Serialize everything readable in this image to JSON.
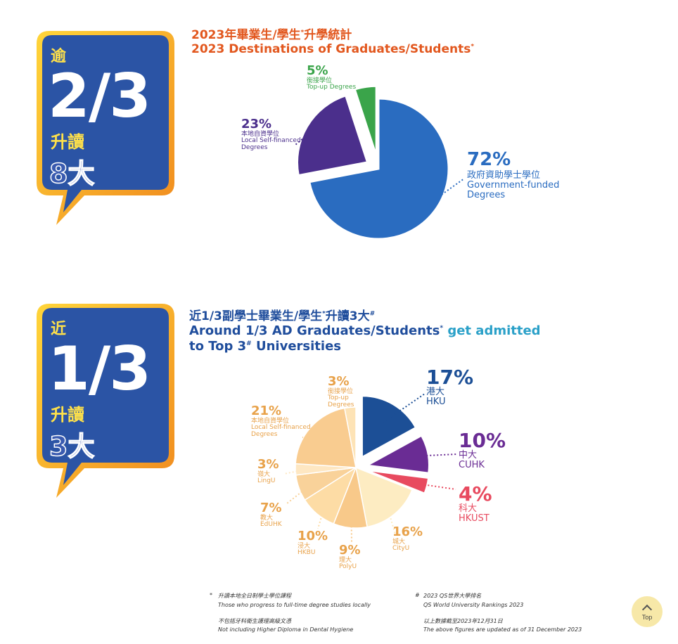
{
  "section1": {
    "bubble": {
      "prefix": "逾",
      "fraction": "2/3",
      "verb": "升讀",
      "outline": "8大"
    },
    "title_zh": "2023年畢業生/學生",
    "title_zh_sup": "*",
    "title_zh_tail": "升學統計",
    "title_en": "2023 Destinations of Graduates/Students",
    "title_en_sup": "*"
  },
  "section2": {
    "bubble": {
      "prefix": "近",
      "fraction": "1/3",
      "verb": "升讀",
      "outline": "3大"
    },
    "title_zh": "近1/3副學士畢業生/學生",
    "title_zh_sup": "*",
    "title_zh_tail": "升讀3大",
    "title_zh_sup2": "#",
    "title_en_1a": "Around 1/3 AD Graduates/Students",
    "title_en_1sup": "*",
    "title_en_1b": " get admitted",
    "title_en_2a": "to Top 3",
    "title_en_2sup": "#",
    "title_en_2b": " Universities"
  },
  "chart_data": [
    {
      "type": "pie",
      "title": "2023 Destinations of Graduates/Students",
      "slices": [
        {
          "pct": "72%",
          "value": 72,
          "zh": "政府資助學士學位",
          "en": "Government-funded Degrees",
          "en1": "Government-funded",
          "en2": "Degrees",
          "color": "#2a6cc0"
        },
        {
          "pct": "23%",
          "value": 23,
          "zh": "本地自資學位",
          "en": "Local Self-financed Degrees",
          "en1": "Local Self-financed",
          "en2": "Degrees",
          "color": "#4b2f8c"
        },
        {
          "pct": "5%",
          "value": 5,
          "zh": "銜接學位",
          "en": "Top-up Degrees",
          "color": "#3aa44a"
        }
      ]
    },
    {
      "type": "pie",
      "title": "Around 1/3 AD Graduates/Students get admitted to Top 3 Universities",
      "slices": [
        {
          "pct": "17%",
          "value": 17,
          "zh": "港大",
          "en": "HKU",
          "color": "#1c4f96"
        },
        {
          "pct": "10%",
          "value": 10,
          "zh": "中大",
          "en": "CUHK",
          "color": "#6a2c94"
        },
        {
          "pct": "4%",
          "value": 4,
          "zh": "科大",
          "en": "HKUST",
          "color": "#e84a5f"
        },
        {
          "pct": "16%",
          "value": 16,
          "zh": "城大",
          "en": "CityU",
          "color": "#fdecc2"
        },
        {
          "pct": "9%",
          "value": 9,
          "zh": "理大",
          "en": "PolyU",
          "color": "#f8c98a"
        },
        {
          "pct": "10%",
          "value": 10,
          "zh": "浸大",
          "en": "HKBU",
          "color": "#fddca5"
        },
        {
          "pct": "7%",
          "value": 7,
          "zh": "教大",
          "en": "EdUHK",
          "color": "#f9d29a"
        },
        {
          "pct": "3%",
          "value": 3,
          "zh": "嶺大",
          "en": "LingU",
          "color": "#fee7c2"
        },
        {
          "pct": "21%",
          "value": 21,
          "zh": "本地自資學位",
          "en": "Local Self-financed Degrees",
          "en1": "Local Self-financed",
          "en2": "Degrees",
          "color": "#f9cc90"
        },
        {
          "pct": "3%",
          "value": 3,
          "zh": "銜接學位",
          "en": "Top-up Degrees",
          "en1": "Top-up",
          "en2": "Degrees",
          "color": "#fde3b6"
        }
      ]
    }
  ],
  "notes": {
    "n1_mark": "*",
    "n1_zh": "升讀本地全日制學士學位課程",
    "n1_en": "Those who progress to full-time degree studies locally",
    "n2_zh": "不包括牙科衛生護理高級文憑",
    "n2_en": "Not including Higher Diploma in Dental Hygiene",
    "n3_mark": "#",
    "n3_zh": "2023 QS世界大學排名",
    "n3_en": "QS World University Rankings 2023",
    "n4_zh": "以上數據截至2023年12月31日",
    "n4_en": "The above figures are updated as of 31 December 2023"
  },
  "top_button": {
    "label": "Top",
    "icon": "chevron-up-icon"
  }
}
